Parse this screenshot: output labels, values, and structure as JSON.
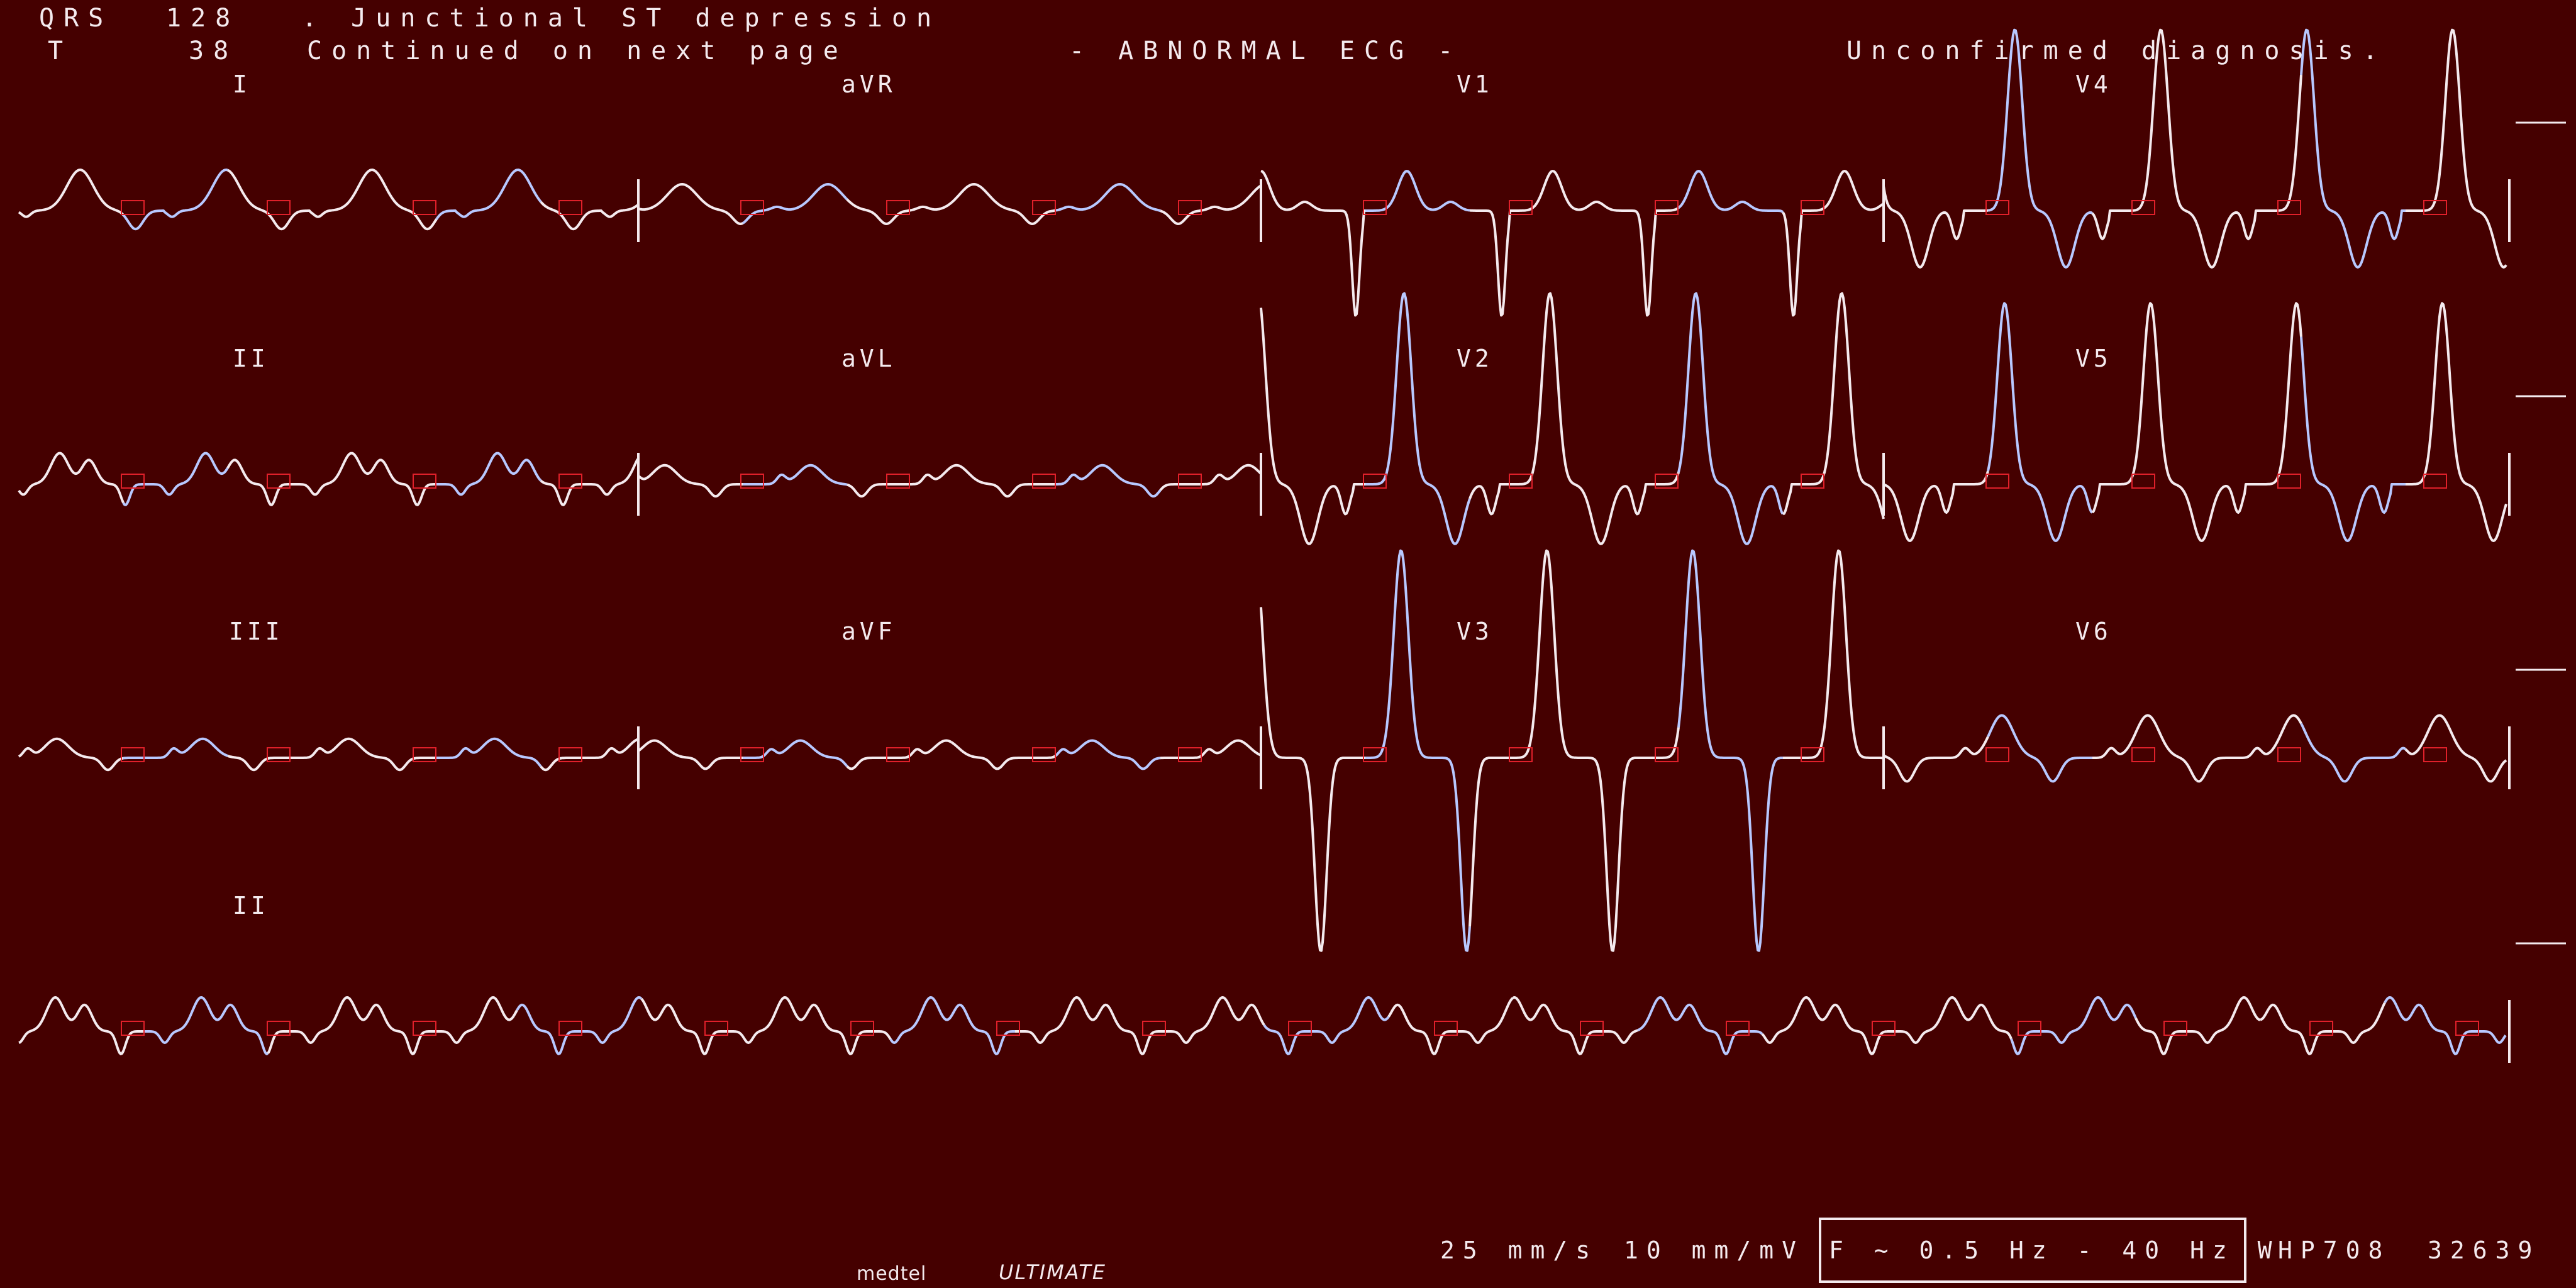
{
  "header": {
    "line1_label": "QRS",
    "line1_value": "128",
    "line1_text": ". Junctional ST depression",
    "line2_label": "T",
    "line2_value": "38",
    "line2_text": "Continued on next page",
    "status": "- ABNORMAL ECG -",
    "confirmation": "Unconfirmed diagnosis."
  },
  "leads": {
    "I": "I",
    "aVR": "aVR",
    "V1": "V1",
    "V4": "V4",
    "II": "II",
    "aVL": "aVL",
    "V2": "V2",
    "V5": "V5",
    "III": "III",
    "aVF": "aVF",
    "V3": "V3",
    "V6": "V6",
    "rhythm": "II"
  },
  "footer": {
    "speed": "25 mm/s",
    "gain": "10 mm/mV",
    "filter": "F ~ 0.5 Hz - 40 Hz W",
    "device": "HP708",
    "id": "32639",
    "brand_name": "medtel",
    "brand_product": "ULTIMATE"
  },
  "colors": {
    "background": "#450000",
    "trace": "#f4eaee",
    "trace_alt": "#b8c8ff",
    "marker": "#e0202a"
  },
  "layout_rows": 4,
  "layout_columns": 4
}
